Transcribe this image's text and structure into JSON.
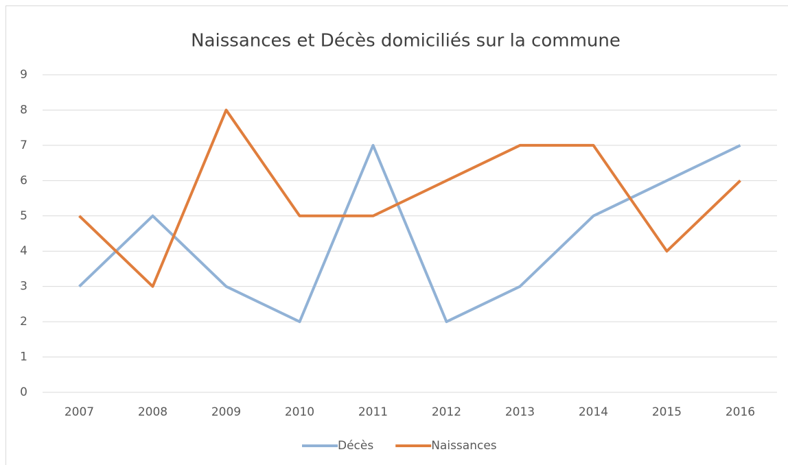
{
  "chart_data": {
    "type": "line",
    "title": "Naissances et Décès domiciliés sur la commune",
    "categories": [
      "2007",
      "2008",
      "2009",
      "2010",
      "2011",
      "2012",
      "2013",
      "2014",
      "2015",
      "2016"
    ],
    "series": [
      {
        "name": "Décès",
        "color": "#91b2d6",
        "values": [
          3,
          5,
          3,
          2,
          7,
          2,
          3,
          5,
          6,
          7
        ]
      },
      {
        "name": "Naissances",
        "color": "#e07e3d",
        "values": [
          5,
          3,
          8,
          5,
          5,
          6,
          7,
          7,
          4,
          6
        ]
      }
    ],
    "ylim": [
      0,
      9
    ],
    "yticks": [
      0,
      1,
      2,
      3,
      4,
      5,
      6,
      7,
      8,
      9
    ],
    "grid": true,
    "legend": "bottom"
  }
}
